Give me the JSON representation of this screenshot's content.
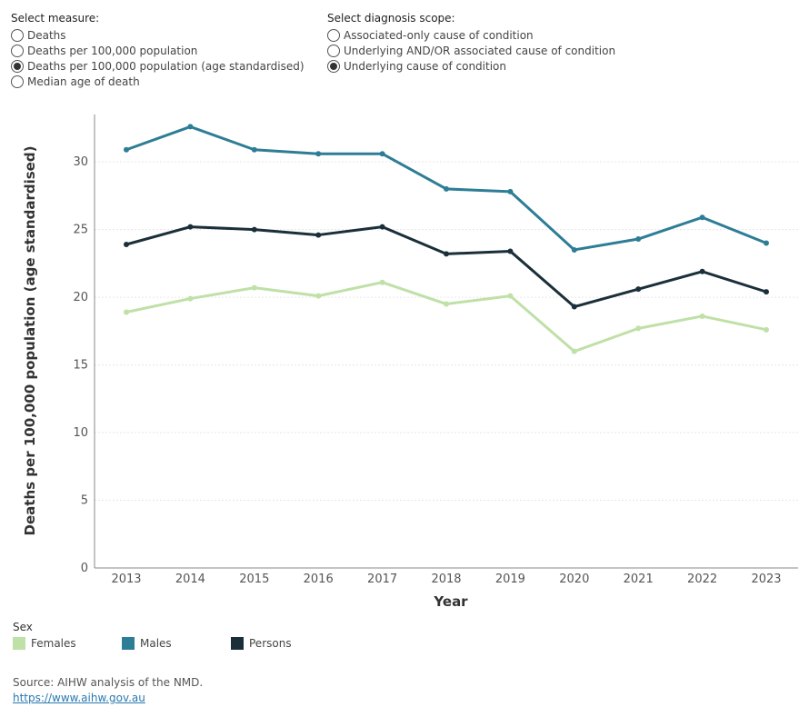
{
  "measure": {
    "title": "Select measure:",
    "options": [
      {
        "label": "Deaths",
        "selected": false
      },
      {
        "label": "Deaths per 100,000 population",
        "selected": false
      },
      {
        "label": "Deaths per 100,000 population (age standardised)",
        "selected": true
      },
      {
        "label": "Median age of death",
        "selected": false
      }
    ]
  },
  "scope": {
    "title": "Select diagnosis scope:",
    "options": [
      {
        "label": "Associated-only cause of condition",
        "selected": false
      },
      {
        "label": "Underlying AND/OR associated cause of condition",
        "selected": false
      },
      {
        "label": "Underlying cause of condition",
        "selected": true
      }
    ]
  },
  "chart_data": {
    "type": "line",
    "title": "",
    "xlabel": "Year",
    "ylabel": "Deaths per 100,000 population (age standardised)",
    "categories": [
      "2013",
      "2014",
      "2015",
      "2016",
      "2017",
      "2018",
      "2019",
      "2020",
      "2021",
      "2022",
      "2023"
    ],
    "yticks": [
      0,
      5,
      10,
      15,
      20,
      25,
      30
    ],
    "ylim": [
      0,
      33.5
    ],
    "grid": "horizontal-dashed",
    "series": [
      {
        "name": "Males",
        "color": "#2e7d96",
        "values": [
          30.9,
          32.6,
          30.9,
          30.6,
          30.6,
          28.0,
          27.8,
          23.5,
          24.3,
          25.9,
          24.0
        ]
      },
      {
        "name": "Persons",
        "color": "#1b2f3a",
        "values": [
          23.9,
          25.2,
          25.0,
          24.6,
          25.2,
          23.2,
          23.4,
          19.3,
          20.6,
          21.9,
          20.4
        ]
      },
      {
        "name": "Females",
        "color": "#bfe0a6",
        "values": [
          18.9,
          19.9,
          20.7,
          20.1,
          21.1,
          19.5,
          20.1,
          16.0,
          17.7,
          18.6,
          17.6
        ]
      }
    ]
  },
  "legend": {
    "title": "Sex",
    "items": [
      {
        "label": "Females",
        "color": "#bfe0a6"
      },
      {
        "label": "Males",
        "color": "#2e7d96"
      },
      {
        "label": "Persons",
        "color": "#1b2f3a"
      }
    ]
  },
  "source": {
    "text": "Source: AIHW analysis of the NMD.",
    "link": "https://www.aihw.gov.au"
  }
}
